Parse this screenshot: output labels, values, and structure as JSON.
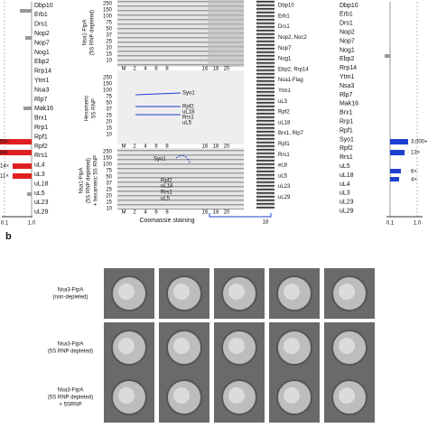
{
  "left_list": [
    {
      "label": "Dbp10"
    },
    {
      "label": "Erb1"
    },
    {
      "label": "Drs1"
    },
    {
      "label": "Nop2"
    },
    {
      "label": "Nop7"
    },
    {
      "label": "Nog1"
    },
    {
      "label": "Ebp2"
    },
    {
      "label": "Rrp14"
    },
    {
      "label": "Ytm1"
    },
    {
      "label": "Nsa3"
    },
    {
      "label": "Rlp7"
    },
    {
      "label": "Mak16"
    },
    {
      "label": "Brx1"
    },
    {
      "label": "Rrp1"
    },
    {
      "label": "Rpf1"
    },
    {
      "label": "Rpf2",
      "color": "#d62020"
    },
    {
      "label": "Rrs1",
      "color": "#d62020"
    },
    {
      "label": "uL4"
    },
    {
      "label": "uL3"
    },
    {
      "label": "uL18",
      "color": "#d62020"
    },
    {
      "label": "uL5"
    },
    {
      "label": "uL23"
    },
    {
      "label": "uL29"
    }
  ],
  "right_list": [
    {
      "label": "Dbp10"
    },
    {
      "label": "Erb1"
    },
    {
      "label": "Drs1"
    },
    {
      "label": "Nop2"
    },
    {
      "label": "Nop7"
    },
    {
      "label": "Nog1"
    },
    {
      "label": "Ebp2"
    },
    {
      "label": "Rrp14"
    },
    {
      "label": "Ytm1"
    },
    {
      "label": "Nsa3"
    },
    {
      "label": "Rlp7"
    },
    {
      "label": "Mak16"
    },
    {
      "label": "Brx1"
    },
    {
      "label": "Rrp1"
    },
    {
      "label": "Rpf1"
    },
    {
      "label": "Syo1",
      "color": "#1f3fd0"
    },
    {
      "label": "Rpf2",
      "color": "#1f3fd0"
    },
    {
      "label": "Rrs1",
      "color": "#1f3fd0"
    },
    {
      "label": "uL5",
      "color": "#1f3fd0"
    },
    {
      "label": "uL18",
      "color": "#1f3fd0"
    },
    {
      "label": "uL4"
    },
    {
      "label": "uL3"
    },
    {
      "label": "uL23"
    },
    {
      "label": "uL29"
    }
  ],
  "left_folds": [
    "55×",
    "84×",
    "14×",
    "11×"
  ],
  "right_folds": [
    "3,000+",
    "13×",
    "6×",
    "4×"
  ],
  "axis_ticks": [
    "0.1",
    "1.0"
  ],
  "gel": {
    "markers": [
      "250",
      "150",
      "100",
      "75",
      "50",
      "37",
      "25",
      "20",
      "15",
      "10"
    ],
    "lanes": [
      "M",
      "2",
      "4",
      "6",
      "8",
      "16",
      "18",
      "20"
    ],
    "conditions": [
      "Nsa1-FtpA",
      "(5S RNP depleted)",
      "Hexameric",
      "5S RNP",
      "+ hexameric 5S RNP"
    ],
    "inner_labels": [
      "Syo1",
      "Rpf2",
      "uL18",
      "Rrs1",
      "uL5"
    ],
    "xlabel": "Coomassie staining",
    "strip_label": "18",
    "band_labels": [
      "Dbp10",
      "Erb1",
      "Drs1",
      "Nop2, Noc2",
      "Nop7",
      "Nog1",
      "Ebp2, Rrp14",
      "Nsa1-Flag",
      "Ytm1",
      "uL3",
      "Rpf2",
      "uL18",
      "Brx1, Rlp7",
      "Rpf1",
      "Rrs1",
      "eL8",
      "uL5",
      "uL23",
      "uL29"
    ]
  },
  "panel_b": {
    "letter": "b",
    "rows": [
      [
        "Nsa3-FtpA",
        "(non-depleted)"
      ],
      [
        "Nsa3-FtpA",
        "(5S RNP depleted)"
      ],
      [
        "Nsa3-FtpA",
        "(5S RNP depleted)",
        "+ 5SRNP"
      ]
    ]
  }
}
